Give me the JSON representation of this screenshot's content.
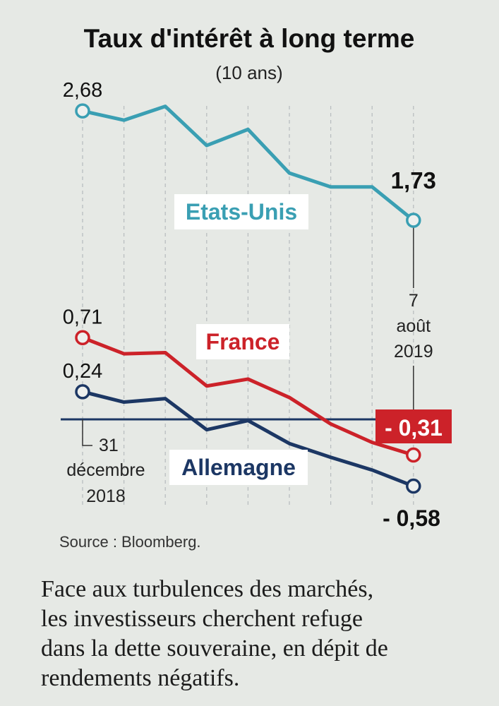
{
  "chart_data": {
    "type": "line",
    "title": "Taux d'intérêt à long terme",
    "subtitle": "(10 ans)",
    "start_label": [
      "31",
      "décembre",
      "2018"
    ],
    "end_label": [
      "7",
      "août",
      "2019"
    ],
    "zero_line": 0,
    "ylim": [
      -0.7,
      2.9
    ],
    "x": [
      0,
      1,
      2,
      3,
      4,
      5,
      6,
      7,
      8
    ],
    "series": [
      {
        "name": "Etats-Unis",
        "color": "#3a9fb3",
        "values": [
          2.68,
          2.6,
          2.72,
          2.38,
          2.52,
          2.14,
          2.02,
          2.02,
          1.73
        ],
        "start_label": "2,68",
        "end_label": "1,73",
        "label_style": "plain"
      },
      {
        "name": "France",
        "color": "#cc2229",
        "values": [
          0.71,
          0.57,
          0.58,
          0.29,
          0.35,
          0.19,
          -0.04,
          -0.2,
          -0.31
        ],
        "start_label": "0,71",
        "end_label": "- 0,31",
        "label_style": "boxed"
      },
      {
        "name": "Allemagne",
        "color": "#1c3764",
        "values": [
          0.24,
          0.15,
          0.18,
          -0.09,
          -0.01,
          -0.21,
          -0.33,
          -0.44,
          -0.58
        ],
        "start_label": "0,24",
        "end_label": "- 0,58",
        "label_style": "plain"
      }
    ]
  },
  "source": "Source : Bloomberg.",
  "caption_lines": [
    "Face aux turbulences des marchés,",
    "les investisseurs cherchent refuge",
    "dans la dette souveraine, en dépit de",
    "rendements négatifs."
  ]
}
